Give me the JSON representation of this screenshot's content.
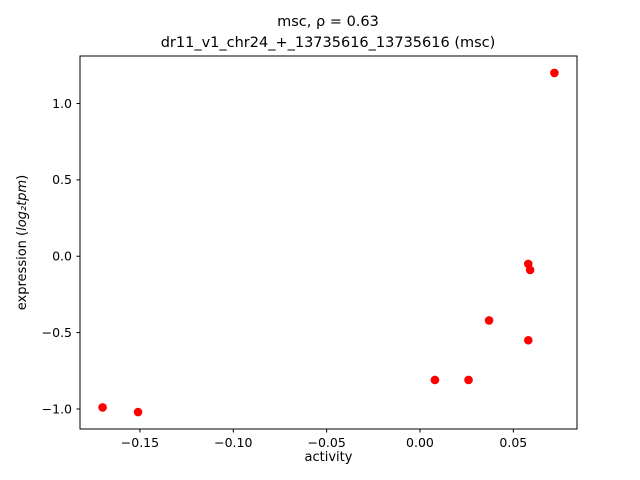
{
  "figure": {
    "background": "#ffffff"
  },
  "chart_data": {
    "type": "scatter",
    "title": "msc, ρ = 0.63",
    "subtitle": "dr11_v1_chr24_+_13735616_13735616 (msc)",
    "xlabel": "activity",
    "ylabel": "expression (log₂tpm)",
    "ylabel_parts": {
      "prefix": "expression (",
      "math": "log₂tpm",
      "suffix": ")"
    },
    "xlim": [
      -0.1821,
      0.0841
    ],
    "ylim": [
      -1.131,
      1.311
    ],
    "xticks": [
      -0.15,
      -0.1,
      -0.05,
      0.0,
      0.05
    ],
    "xtick_labels": [
      "−0.15",
      "−0.10",
      "−0.05",
      "0.00",
      "0.05"
    ],
    "yticks": [
      -1.0,
      -0.5,
      0.0,
      0.5,
      1.0
    ],
    "ytick_labels": [
      "−1.0",
      "−0.5",
      "0.0",
      "0.5",
      "1.0"
    ],
    "marker_color": "#ff0000",
    "grid": false,
    "legend": null,
    "points": [
      {
        "x": -0.17,
        "y": -0.99
      },
      {
        "x": -0.151,
        "y": -1.02
      },
      {
        "x": 0.008,
        "y": -0.81
      },
      {
        "x": 0.026,
        "y": -0.81
      },
      {
        "x": 0.037,
        "y": -0.42
      },
      {
        "x": 0.058,
        "y": -0.55
      },
      {
        "x": 0.058,
        "y": -0.05
      },
      {
        "x": 0.059,
        "y": -0.09
      },
      {
        "x": 0.072,
        "y": 1.2
      }
    ]
  }
}
